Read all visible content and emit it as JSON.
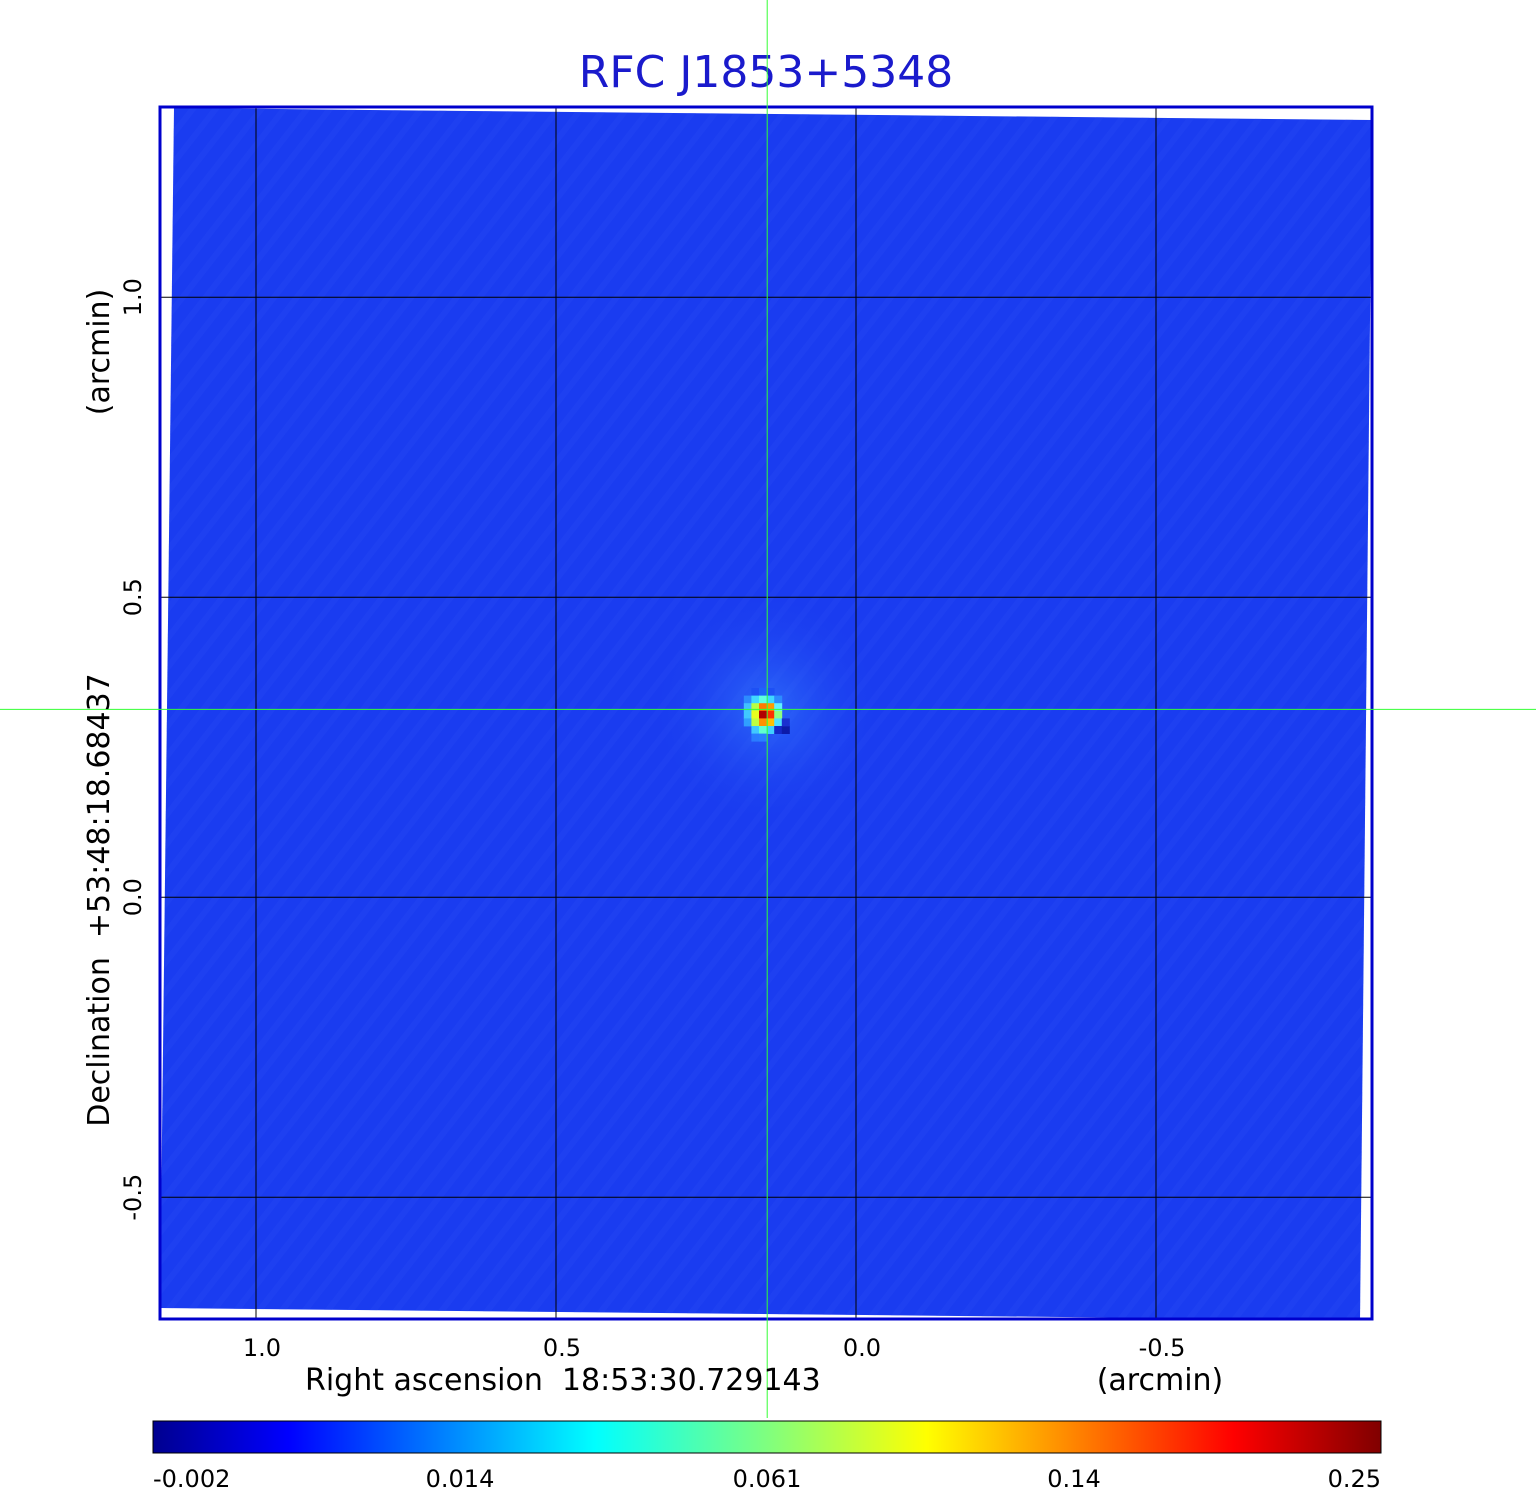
{
  "chart_data": {
    "type": "heatmap",
    "title": "RFC J1853+5348",
    "xlabel": "Right ascension  18:53:30.729143",
    "xunit": "(arcmin)",
    "ylabel": "Declination  +53:48:18.68437",
    "yunit": "(arcmin)",
    "x_ticks": [
      "1.0",
      "0.5",
      "0.0",
      "-0.5"
    ],
    "x_tick_values": [
      1.0,
      0.5,
      0.0,
      -0.5
    ],
    "y_ticks": [
      "1.0",
      "0.5",
      "0.0",
      "-0.5"
    ],
    "y_tick_values": [
      1.0,
      0.5,
      0.0,
      -0.5
    ],
    "xlim": [
      1.16,
      -0.86
    ],
    "ylim": [
      -0.703,
      1.317
    ],
    "grid": true,
    "x_reversed": true,
    "source": {
      "x": 0.148,
      "y": 0.313,
      "peak": 0.25
    },
    "crosshair": {
      "x": 0.148,
      "y": 0.313
    },
    "colorbar": {
      "orientation": "horizontal",
      "tick_labels": [
        "-0.002",
        "0.014",
        "0.061",
        "0.14",
        "0.25"
      ],
      "colormap": "jet"
    },
    "colors": {
      "title": "#1a1acc",
      "frame": "#0000cc",
      "background": "#1a3cf0",
      "grid": "#000000",
      "crosshair": "#33ff33"
    }
  }
}
